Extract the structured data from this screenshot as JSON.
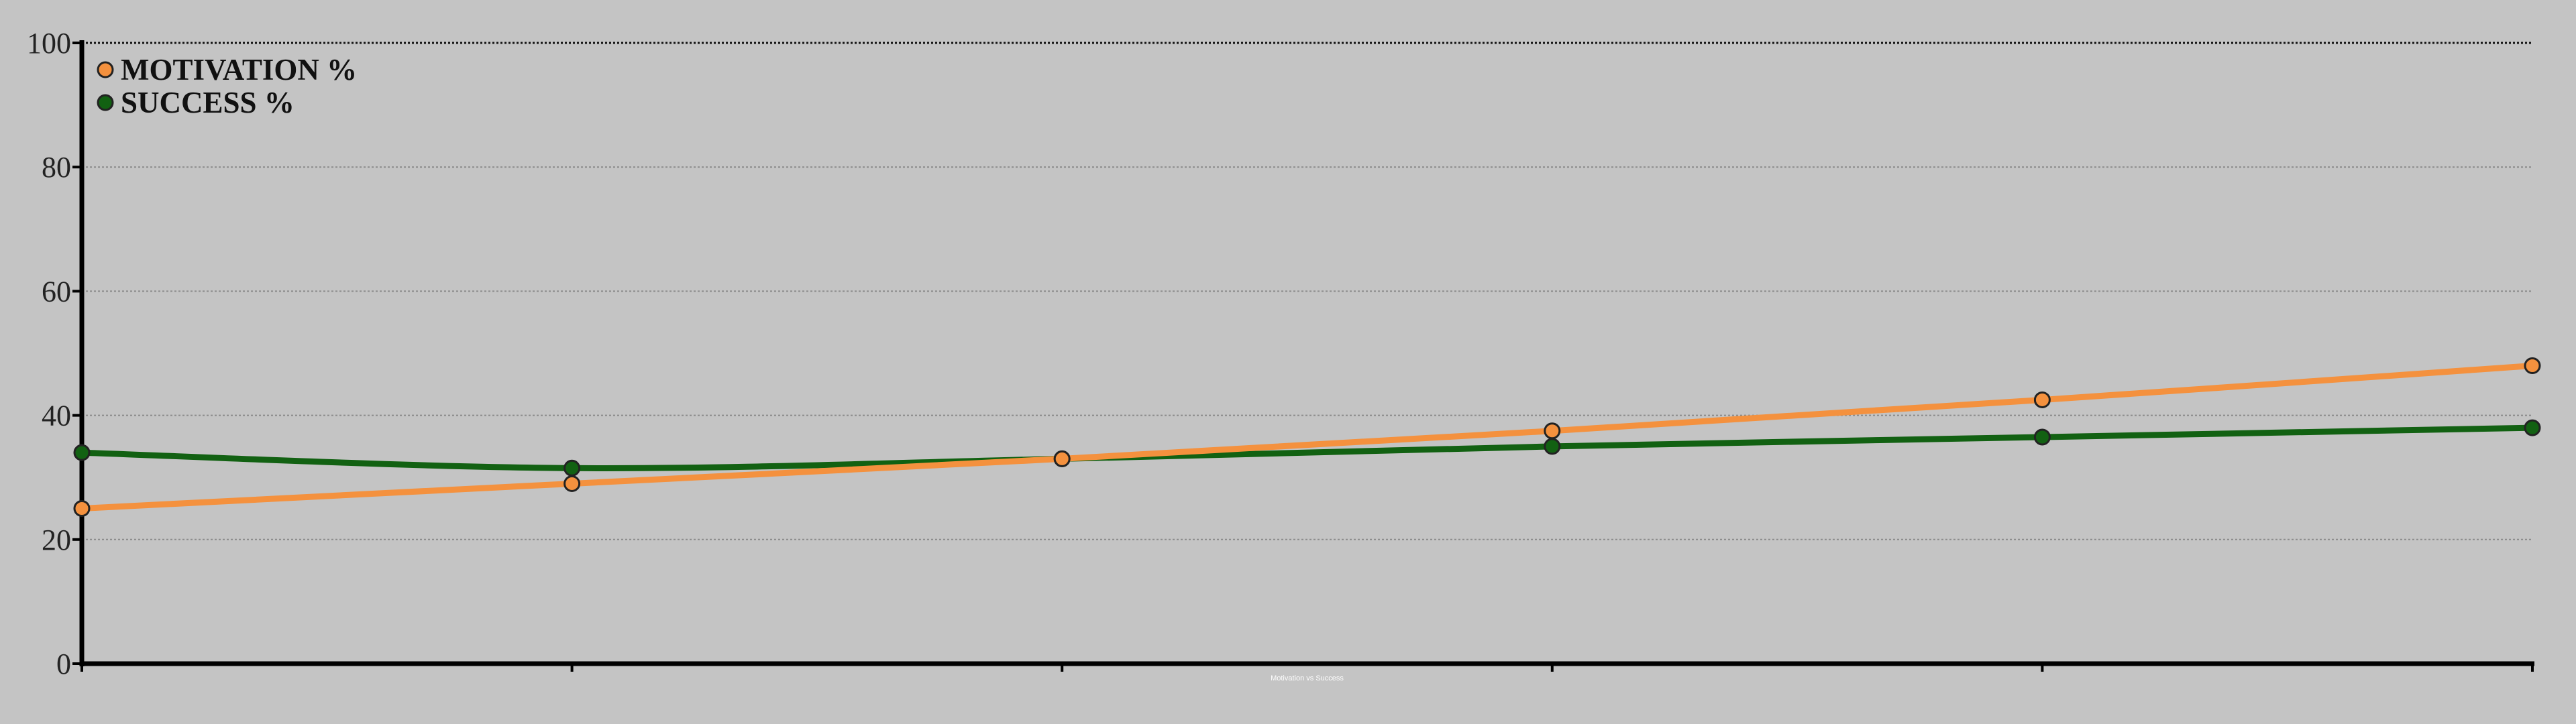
{
  "chart_data": {
    "type": "line",
    "title": "",
    "xlabel": "",
    "ylabel": "",
    "x": [
      0,
      1,
      2,
      3,
      4,
      5
    ],
    "ylim": [
      0,
      100
    ],
    "yticks": [
      "0",
      "20",
      "40",
      "60",
      "80",
      "100"
    ],
    "grid": true,
    "legend_position": "top-left",
    "footnote": "Motivation vs Success",
    "series": [
      {
        "name": "MOTIVATION %",
        "color": "#f4913e",
        "values": [
          25,
          29,
          33,
          37.5,
          42.5,
          48
        ]
      },
      {
        "name": "SUCCESS %",
        "color": "#126112",
        "values": [
          34,
          31.5,
          33,
          35,
          36.5,
          38
        ]
      }
    ]
  }
}
